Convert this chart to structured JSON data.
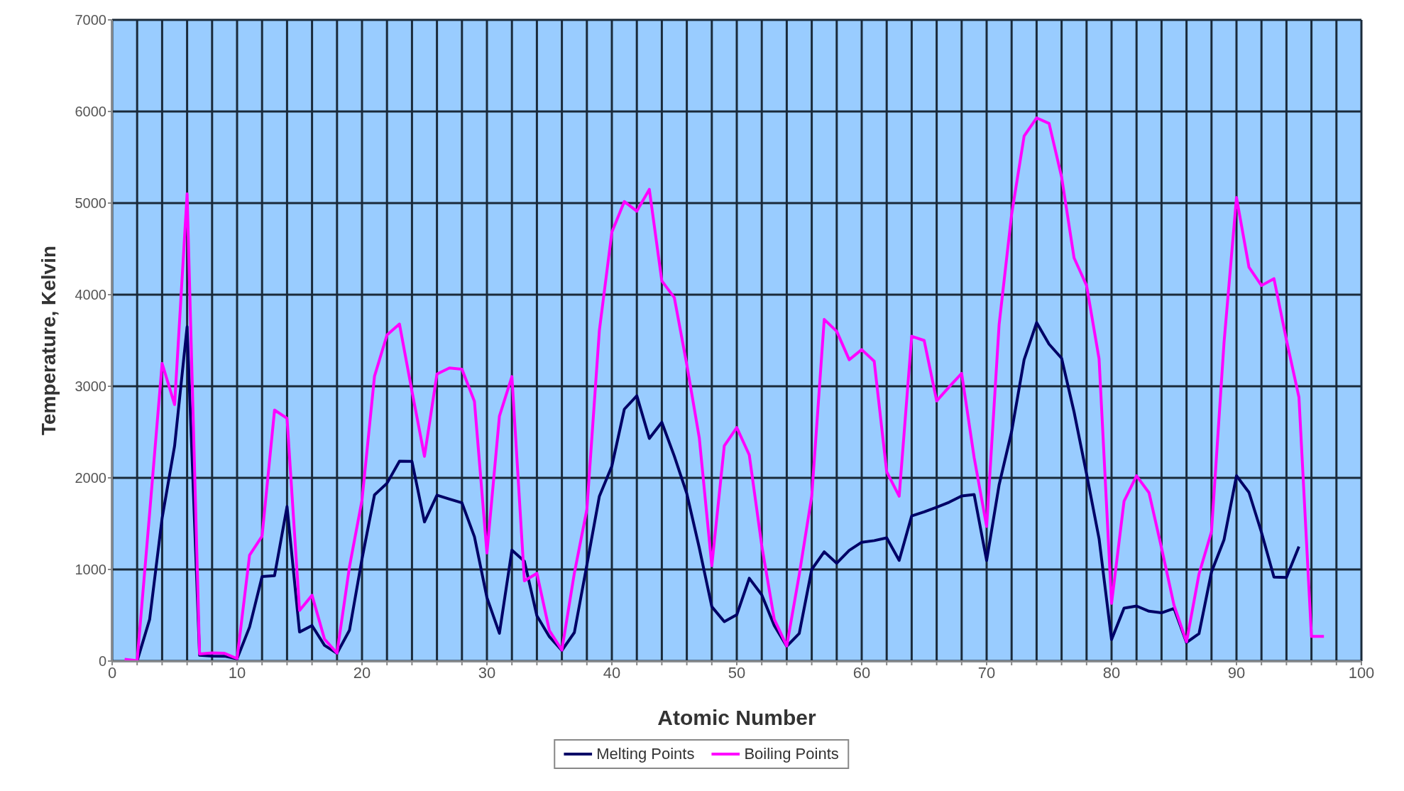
{
  "chart_data": {
    "type": "line",
    "xlabel": "Atomic Number",
    "ylabel": "Temperature, Kelvin",
    "x": [
      1,
      2,
      3,
      4,
      5,
      6,
      7,
      8,
      9,
      10,
      11,
      12,
      13,
      14,
      15,
      16,
      17,
      18,
      19,
      20,
      21,
      22,
      23,
      24,
      25,
      26,
      27,
      28,
      29,
      30,
      31,
      32,
      33,
      34,
      35,
      36,
      37,
      38,
      39,
      40,
      41,
      42,
      43,
      44,
      45,
      46,
      47,
      48,
      49,
      50,
      51,
      52,
      53,
      54,
      55,
      56,
      57,
      58,
      59,
      60,
      61,
      62,
      63,
      64,
      65,
      66,
      67,
      68,
      69,
      70,
      71,
      72,
      73,
      74,
      75,
      76,
      77,
      78,
      79,
      80,
      81,
      82,
      83,
      84,
      85,
      86,
      87,
      88,
      89,
      90,
      91,
      92,
      93,
      94,
      95,
      96,
      97
    ],
    "series": [
      {
        "name": "Melting Points",
        "color": "#000066",
        "values": [
          null,
          1,
          454,
          1560,
          2350,
          3650,
          63,
          54,
          53,
          25,
          371,
          923,
          933,
          1687,
          317,
          388,
          172,
          84,
          337,
          1115,
          1814,
          1941,
          2183,
          2180,
          1519,
          1811,
          1768,
          1728,
          1358,
          693,
          303,
          1211,
          1090,
          494,
          266,
          116,
          312,
          1050,
          1799,
          2128,
          2750,
          2896,
          2430,
          2607,
          2237,
          1828,
          1235,
          594,
          430,
          505,
          904,
          723,
          387,
          161,
          302,
          1000,
          1193,
          1068,
          1208,
          1297,
          1315,
          1345,
          1099,
          1585,
          1629,
          1680,
          1734,
          1802,
          1818,
          1097,
          1925,
          2506,
          3290,
          3695,
          3459,
          3306,
          2719,
          2041,
          1337,
          234,
          577,
          601,
          544,
          527,
          575,
          202,
          300,
          973,
          1323,
          2023,
          1841,
          1405,
          917,
          913,
          1250,
          null,
          null
        ]
      },
      {
        "name": "Boiling Points",
        "color": "#ff00ff",
        "values": [
          20,
          4,
          1615,
          3250,
          2800,
          5100,
          77,
          90,
          85,
          27,
          1156,
          1363,
          2740,
          2650,
          553,
          718,
          239,
          87,
          1032,
          1757,
          3109,
          3560,
          3680,
          2944,
          2235,
          3134,
          3200,
          3186,
          2835,
          1180,
          2673,
          3106,
          876,
          958,
          332,
          120,
          961,
          1655,
          3609,
          4682,
          5017,
          4912,
          5150,
          4150,
          3968,
          3236,
          2435,
          1040,
          2350,
          2550,
          2250,
          1260,
          457,
          165,
          944,
          1800,
          3730,
          3600,
          3290,
          3400,
          3273,
          2067,
          1800,
          3546,
          3500,
          2840,
          2993,
          3140,
          2223,
          1469,
          3675,
          4876,
          5731,
          5930,
          5869,
          5285,
          4401,
          4100,
          3300,
          630,
          1746,
          2022,
          1837,
          1235,
          610,
          211,
          950,
          1413,
          3471,
          5061,
          4300,
          4100,
          4175,
          3505,
          2880,
          270,
          270
        ]
      }
    ],
    "xlim": [
      0,
      100
    ],
    "xticks": [
      0,
      {
        "value": 2,
        "label": null
      },
      {
        "value": 4,
        "label": null
      },
      {
        "value": 6,
        "label": null
      },
      {
        "value": 8,
        "label": null
      },
      10,
      {
        "value": 12,
        "label": null
      },
      {
        "value": 14,
        "label": null
      },
      {
        "value": 16,
        "label": null
      },
      {
        "value": 18,
        "label": null
      },
      20,
      {
        "value": 22,
        "label": null
      },
      {
        "value": 24,
        "label": null
      },
      {
        "value": 26,
        "label": null
      },
      {
        "value": 28,
        "label": null
      },
      30,
      {
        "value": 32,
        "label": null
      },
      {
        "value": 34,
        "label": null
      },
      {
        "value": 36,
        "label": null
      },
      {
        "value": 38,
        "label": null
      },
      40,
      {
        "value": 42,
        "label": null
      },
      {
        "value": 44,
        "label": null
      },
      {
        "value": 46,
        "label": null
      },
      {
        "value": 48,
        "label": null
      },
      50,
      {
        "value": 52,
        "label": null
      },
      {
        "value": 54,
        "label": null
      },
      {
        "value": 56,
        "label": null
      },
      {
        "value": 58,
        "label": null
      },
      60,
      {
        "value": 62,
        "label": null
      },
      {
        "value": 64,
        "label": null
      },
      {
        "value": 66,
        "label": null
      },
      {
        "value": 68,
        "label": null
      },
      70,
      {
        "value": 72,
        "label": null
      },
      {
        "value": 74,
        "label": null
      },
      {
        "value": 76,
        "label": null
      },
      {
        "value": 78,
        "label": null
      },
      80,
      {
        "value": 82,
        "label": null
      },
      {
        "value": 84,
        "label": null
      },
      {
        "value": 86,
        "label": null
      },
      {
        "value": 88,
        "label": null
      },
      90,
      {
        "value": 92,
        "label": null
      },
      {
        "value": 94,
        "label": null
      },
      {
        "value": 96,
        "label": null
      },
      {
        "value": 98,
        "label": null
      },
      100
    ],
    "ylim": [
      0,
      7000
    ],
    "yticks": [
      0,
      1000,
      2000,
      3000,
      4000,
      5000,
      6000,
      7000
    ],
    "grid": true,
    "legend": "bottom",
    "marker": "none",
    "line_style": "solid"
  }
}
